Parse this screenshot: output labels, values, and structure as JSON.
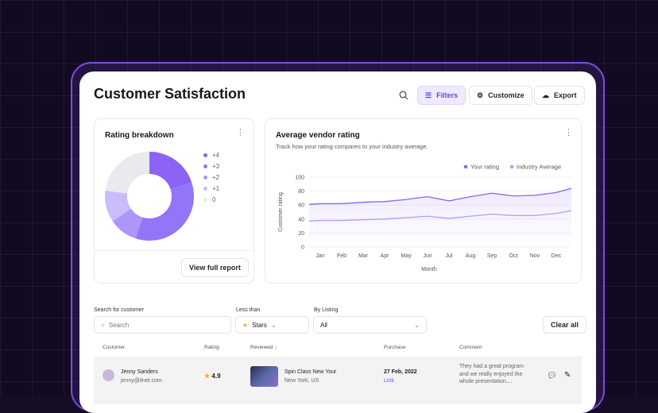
{
  "header": {
    "title": "Customer Satisfaction",
    "filters_label": "Filters",
    "customize_label": "Customize",
    "export_label": "Export"
  },
  "rating_breakdown": {
    "title": "Rating breakdown",
    "button": "View full report",
    "legend": [
      {
        "label": "+4",
        "value": 20,
        "color": "#8b63f5"
      },
      {
        "label": "+3",
        "value": 35,
        "color": "#9474f7"
      },
      {
        "label": "+2",
        "value": 10.5,
        "color": "#ad95fa"
      },
      {
        "label": "+1",
        "value": 11.5,
        "color": "#cbbcfc"
      },
      {
        "label": "0",
        "value": 23,
        "color": "#e9e9ee"
      }
    ]
  },
  "vendor": {
    "title": "Average vendor rating",
    "subtitle": "Track how your rating compares to your industry average."
  },
  "chart_data": {
    "type": "line",
    "xlabel": "Month",
    "ylabel": "Customer rating",
    "ylim": [
      0,
      100
    ],
    "yticks": [
      0,
      20,
      40,
      60,
      80,
      100
    ],
    "categories": [
      "Jan",
      "Feb",
      "Mar",
      "Apr",
      "May",
      "Jun",
      "Jul",
      "Aug",
      "Sep",
      "Oct",
      "Nov",
      "Dec"
    ],
    "series": [
      {
        "name": "Your rating",
        "color": "#8b63f5",
        "values": [
          62,
          62,
          64,
          65,
          68,
          72,
          66,
          72,
          77,
          73,
          74,
          78
        ]
      },
      {
        "name": "Industry Average",
        "color": "#b69cf9",
        "values": [
          38,
          38,
          39,
          40,
          42,
          44,
          41,
          44,
          47,
          45,
          45,
          48
        ]
      }
    ],
    "legend": "top-right",
    "grid": true
  },
  "filters": {
    "search_label": "Search for customer",
    "search_placeholder": "Search",
    "less_than_label": "Less than",
    "less_than_value": "Stars",
    "listing_label": "By Listing",
    "listing_value": "All",
    "clear_label": "Clear all"
  },
  "table": {
    "columns": [
      "Customer",
      "Rating",
      "Reviewed",
      "Purchase",
      "Comment"
    ],
    "rows": [
      {
        "name": "Jenny Sanders",
        "email": "jenny@ilnet.com",
        "rating": "4.9",
        "title": "Spin Class New Your",
        "location": "New York, US",
        "date": "27 Feb, 2022",
        "link": "Link",
        "comment": "They had a great program and we really enjoyed the whole presentation...."
      }
    ]
  }
}
